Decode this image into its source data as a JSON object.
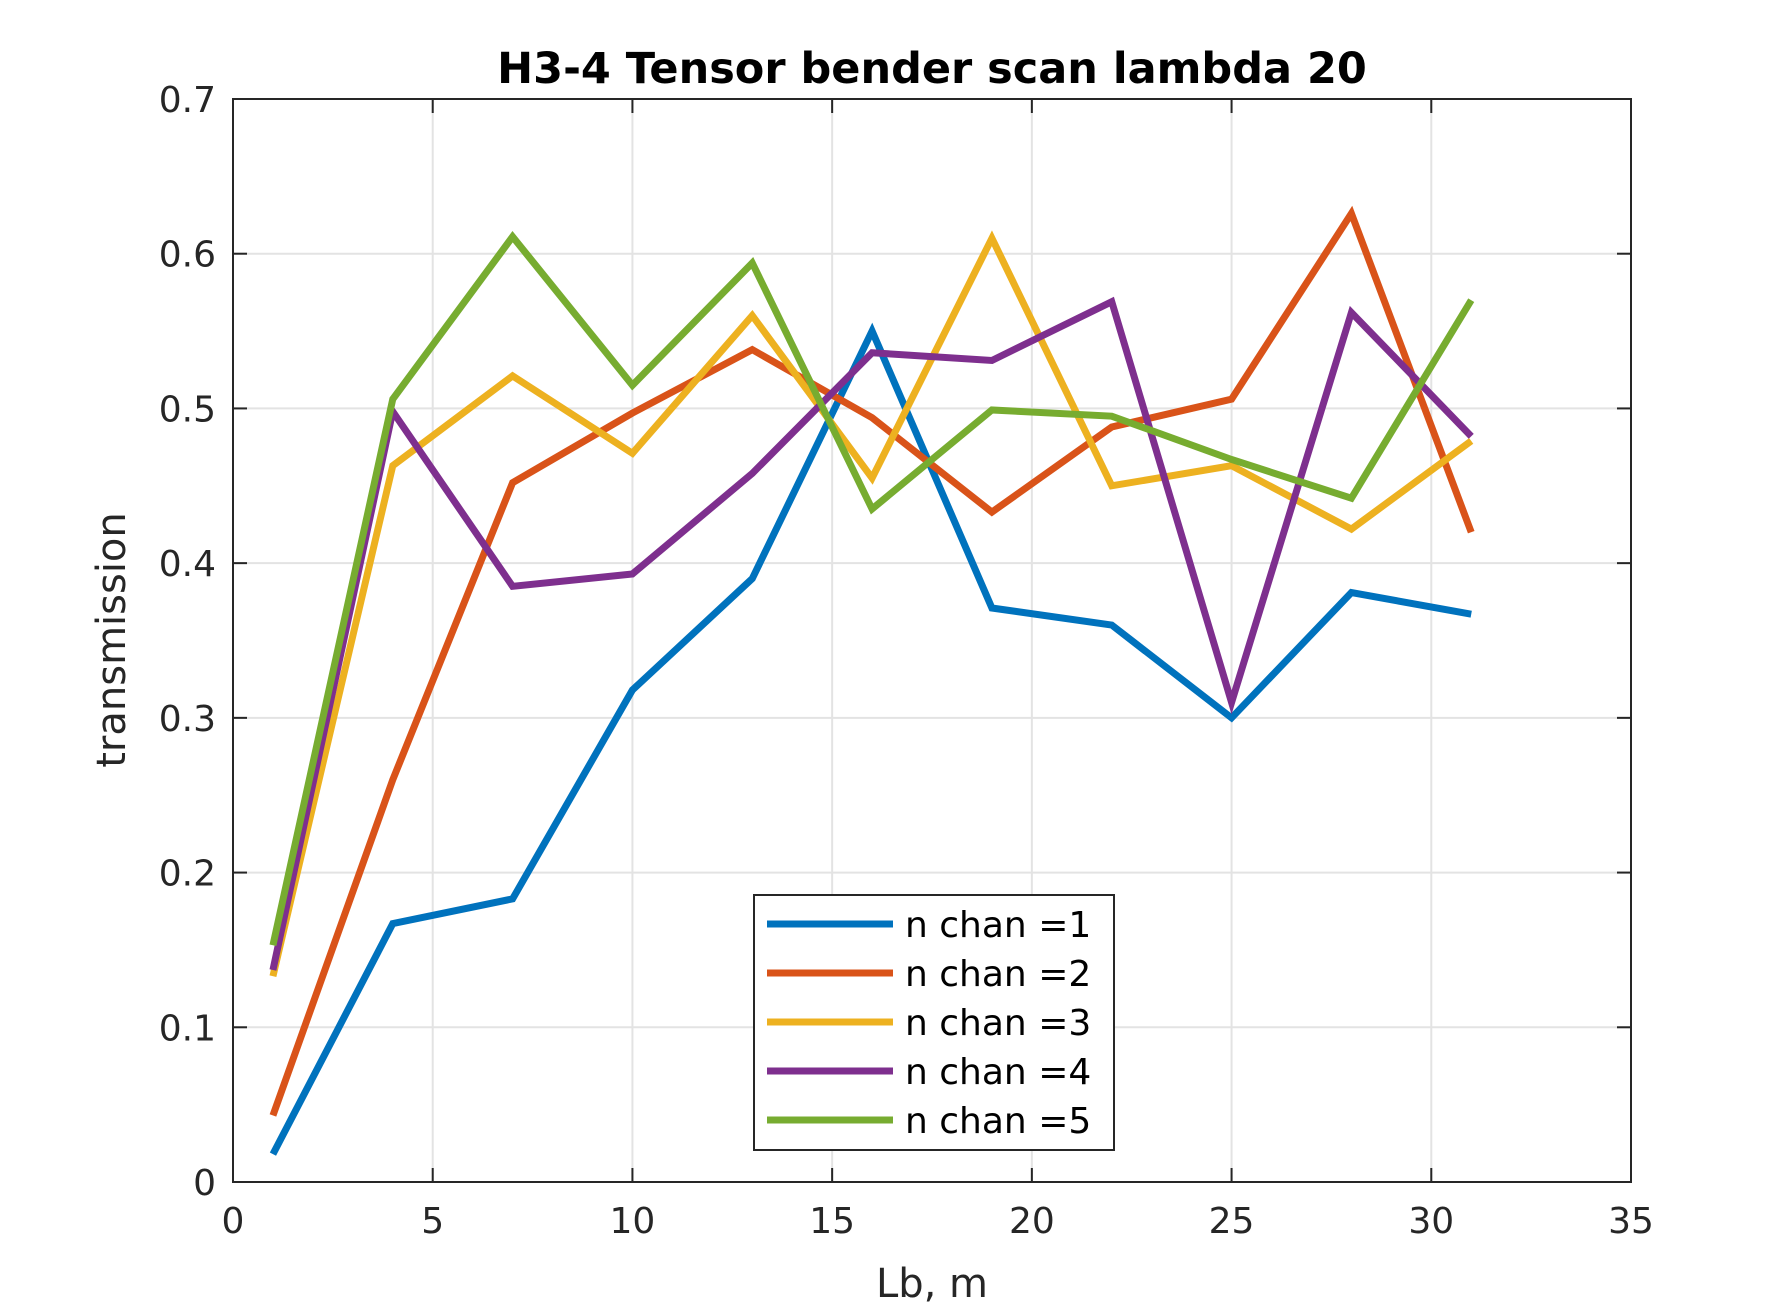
{
  "chart_data": {
    "type": "line",
    "title": "H3-4 Tensor bender scan lambda 20",
    "xlabel": "Lb, m",
    "ylabel": "transmission",
    "xlim": [
      0,
      35
    ],
    "ylim": [
      0,
      0.7
    ],
    "xticks": [
      0,
      5,
      10,
      15,
      20,
      25,
      30,
      35
    ],
    "yticks": [
      0,
      0.1,
      0.2,
      0.3,
      0.4,
      0.5,
      0.6,
      0.7
    ],
    "xtick_labels": [
      "0",
      "5",
      "10",
      "15",
      "20",
      "25",
      "30",
      "35"
    ],
    "ytick_labels": [
      "0",
      "0.1",
      "0.2",
      "0.3",
      "0.4",
      "0.5",
      "0.6",
      "0.7"
    ],
    "grid": true,
    "legend_position": "bottom-center",
    "x": [
      1,
      4,
      7,
      10,
      13,
      16,
      19,
      22,
      25,
      28,
      31
    ],
    "series": [
      {
        "name": "n chan =1",
        "color": "#0072BD",
        "values": [
          0.018,
          0.167,
          0.183,
          0.318,
          0.39,
          0.55,
          0.371,
          0.36,
          0.3,
          0.381,
          0.367
        ]
      },
      {
        "name": "n chan =2",
        "color": "#D95319",
        "values": [
          0.043,
          0.26,
          0.452,
          0.497,
          0.538,
          0.494,
          0.433,
          0.488,
          0.506,
          0.626,
          0.42
        ]
      },
      {
        "name": "n chan =3",
        "color": "#EDB120",
        "values": [
          0.133,
          0.463,
          0.521,
          0.471,
          0.56,
          0.455,
          0.61,
          0.45,
          0.463,
          0.422,
          0.479
        ]
      },
      {
        "name": "n chan =4",
        "color": "#7E2F8E",
        "values": [
          0.137,
          0.498,
          0.385,
          0.393,
          0.458,
          0.536,
          0.531,
          0.569,
          0.31,
          0.562,
          0.482
        ]
      },
      {
        "name": "n chan =5",
        "color": "#77AC30",
        "values": [
          0.153,
          0.506,
          0.611,
          0.515,
          0.594,
          0.435,
          0.499,
          0.495,
          0.467,
          0.442,
          0.57
        ]
      }
    ]
  }
}
